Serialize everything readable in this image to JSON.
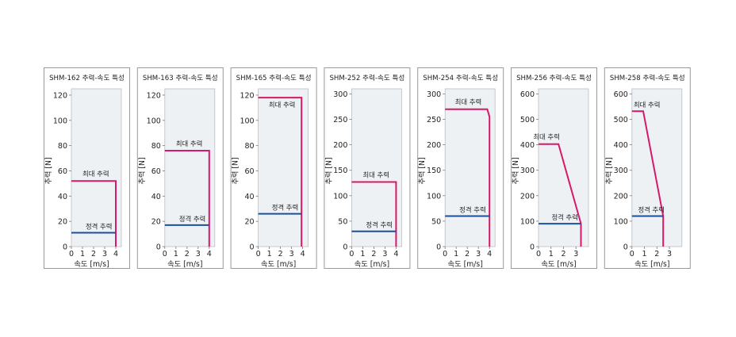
{
  "colors": {
    "max_line": "#d6186a",
    "rated_line": "#1b4fa0",
    "plot_bg": "#eef1f3",
    "frame": "#9a9a9a",
    "text": "#222222"
  },
  "chart_data": [
    {
      "type": "line",
      "title": "SHM-162 추력-속도 특성",
      "xlabel": "속도 [m/s]",
      "ylabel": "추력 [N]",
      "xlim": [
        0,
        4.5
      ],
      "ylim": [
        0,
        125
      ],
      "xticks": [
        0,
        1,
        2,
        3,
        4
      ],
      "yticks": [
        0,
        20,
        40,
        60,
        80,
        100,
        120
      ],
      "series": [
        {
          "name": "최대 추력",
          "points": [
            [
              0,
              52
            ],
            [
              4,
              52
            ],
            [
              4,
              0
            ]
          ]
        },
        {
          "name": "정격 추력",
          "points": [
            [
              0,
              11
            ],
            [
              4,
              11
            ]
          ]
        }
      ]
    },
    {
      "type": "line",
      "title": "SHM-163 추력-속도 특성",
      "xlabel": "속도 [m/s]",
      "ylabel": "추력 [N]",
      "xlim": [
        0,
        4.5
      ],
      "ylim": [
        0,
        125
      ],
      "xticks": [
        0,
        1,
        2,
        3,
        4
      ],
      "yticks": [
        0,
        20,
        40,
        60,
        80,
        100,
        120
      ],
      "series": [
        {
          "name": "최대 추력",
          "points": [
            [
              0,
              76
            ],
            [
              4,
              76
            ],
            [
              4,
              0
            ]
          ]
        },
        {
          "name": "정격 추력",
          "points": [
            [
              0,
              17
            ],
            [
              4,
              17
            ]
          ]
        }
      ]
    },
    {
      "type": "line",
      "title": "SHM-165 추력-속도 특성",
      "xlabel": "속도 [m/s]",
      "ylabel": "추력 [N]",
      "xlim": [
        0,
        4.5
      ],
      "ylim": [
        0,
        125
      ],
      "xticks": [
        0,
        1,
        2,
        3,
        4
      ],
      "yticks": [
        0,
        20,
        40,
        60,
        80,
        100,
        120
      ],
      "series": [
        {
          "name": "최대 추력",
          "points": [
            [
              0,
              118
            ],
            [
              3.9,
              118
            ],
            [
              3.9,
              0
            ]
          ]
        },
        {
          "name": "정격 추력",
          "points": [
            [
              0,
              26
            ],
            [
              3.9,
              26
            ]
          ]
        }
      ]
    },
    {
      "type": "line",
      "title": "SHM-252 추력-속도 특성",
      "xlabel": "속도 [m/s]",
      "ylabel": "추력 [N]",
      "xlim": [
        0,
        4.5
      ],
      "ylim": [
        0,
        310
      ],
      "xticks": [
        0,
        1,
        2,
        3,
        4
      ],
      "yticks": [
        0,
        50,
        100,
        150,
        200,
        250,
        300
      ],
      "series": [
        {
          "name": "최대 추력",
          "points": [
            [
              0,
              127
            ],
            [
              4,
              127
            ],
            [
              4,
              0
            ]
          ]
        },
        {
          "name": "정격 추력",
          "points": [
            [
              0,
              30
            ],
            [
              4,
              30
            ]
          ]
        }
      ]
    },
    {
      "type": "line",
      "title": "SHM-254 추력-속도 특성",
      "xlabel": "속도 [m/s]",
      "ylabel": "추력 [N]",
      "xlim": [
        0,
        4.5
      ],
      "ylim": [
        0,
        310
      ],
      "xticks": [
        0,
        1,
        2,
        3,
        4
      ],
      "yticks": [
        0,
        50,
        100,
        150,
        200,
        250,
        300
      ],
      "series": [
        {
          "name": "최대 추력",
          "points": [
            [
              0,
              270
            ],
            [
              3.8,
              270
            ],
            [
              4,
              255
            ],
            [
              4,
              0
            ]
          ]
        },
        {
          "name": "정격 추력",
          "points": [
            [
              0,
              60
            ],
            [
              4,
              60
            ]
          ]
        }
      ]
    },
    {
      "type": "line",
      "title": "SHM-256 추력-속도 특성",
      "xlabel": "속도 [m/s]",
      "ylabel": "추력 [N]",
      "xlim": [
        0,
        4
      ],
      "ylim": [
        0,
        620
      ],
      "xticks": [
        0,
        1,
        2,
        3
      ],
      "yticks": [
        0,
        100,
        200,
        300,
        400,
        500,
        600
      ],
      "series": [
        {
          "name": "최대 추력",
          "points": [
            [
              0,
              403
            ],
            [
              1.6,
              403
            ],
            [
              3.4,
              90
            ],
            [
              3.4,
              0
            ]
          ]
        },
        {
          "name": "정격 추력",
          "points": [
            [
              0,
              90
            ],
            [
              3.4,
              90
            ]
          ]
        }
      ]
    },
    {
      "type": "line",
      "title": "SHM-258 추력-속도 특성",
      "xlabel": "속도 [m/s]",
      "ylabel": "추력 [N]",
      "xlim": [
        0,
        4
      ],
      "ylim": [
        0,
        620
      ],
      "xticks": [
        0,
        1,
        2,
        3
      ],
      "yticks": [
        0,
        100,
        200,
        300,
        400,
        500,
        600
      ],
      "series": [
        {
          "name": "최대 추력",
          "points": [
            [
              0,
              532
            ],
            [
              0.9,
              532
            ],
            [
              2.5,
              120
            ],
            [
              2.5,
              0
            ]
          ]
        },
        {
          "name": "정격 추력",
          "points": [
            [
              0,
              120
            ],
            [
              2.5,
              120
            ]
          ]
        }
      ]
    }
  ]
}
